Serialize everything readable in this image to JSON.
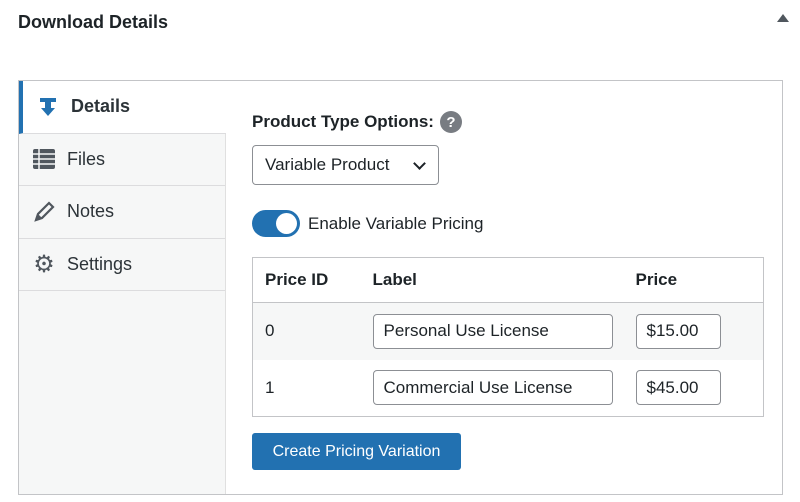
{
  "header": {
    "title": "Download Details"
  },
  "tabs": [
    {
      "label": "Details",
      "icon": "download-icon"
    },
    {
      "label": "Files",
      "icon": "list-icon"
    },
    {
      "label": "Notes",
      "icon": "pencil-icon"
    },
    {
      "label": "Settings",
      "icon": "gear-icon"
    }
  ],
  "product_type": {
    "label": "Product Type Options:",
    "help": "?",
    "selected": "Variable Product"
  },
  "variable_pricing": {
    "label": "Enable Variable Pricing",
    "enabled": true
  },
  "table": {
    "headers": [
      "Price ID",
      "Label",
      "Price"
    ],
    "rows": [
      {
        "id": "0",
        "label": "Personal Use License",
        "price": "$15.00"
      },
      {
        "id": "1",
        "label": "Commercial Use License",
        "price": "$45.00"
      }
    ]
  },
  "create_button": "Create Pricing Variation",
  "colors": {
    "accent": "#2271b1"
  }
}
